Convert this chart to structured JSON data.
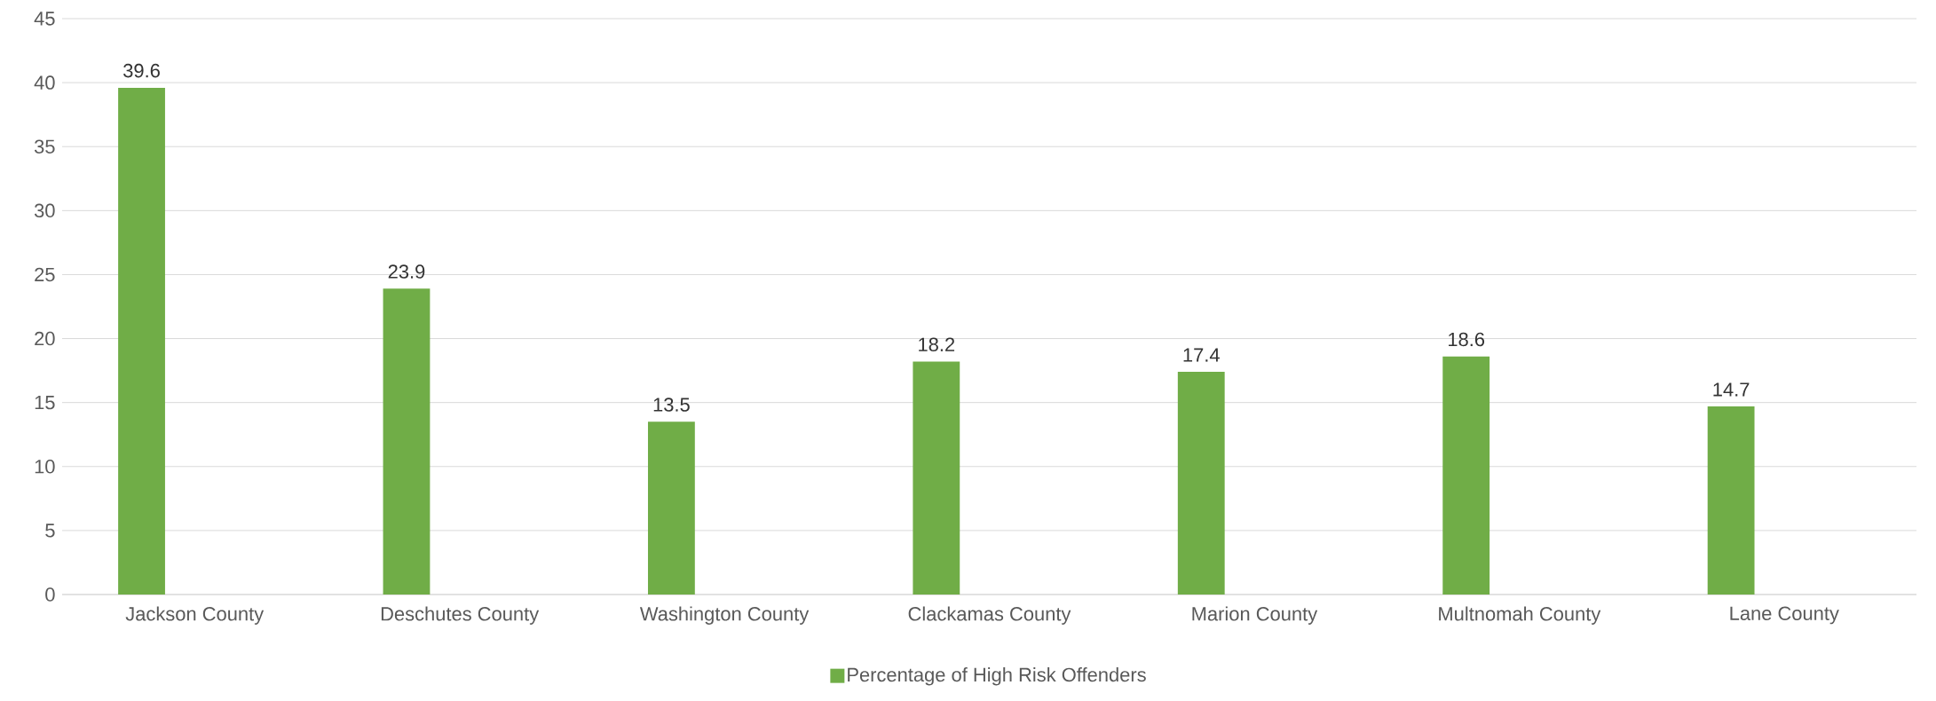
{
  "chart_data": {
    "type": "bar",
    "categories": [
      "Jackson County",
      "Deschutes County",
      "Washington County",
      "Clackamas County",
      "Marion County",
      "Multnomah County",
      "Lane County"
    ],
    "series": [
      {
        "name": "Percentage of High Risk Offenders",
        "color": "#70ad47",
        "values": [
          39.6,
          23.9,
          13.5,
          18.2,
          17.4,
          18.6,
          14.7
        ]
      }
    ],
    "ylim": [
      0,
      45
    ],
    "yticks": [
      0,
      5,
      10,
      15,
      20,
      25,
      30,
      35,
      40,
      45
    ],
    "grid": "y",
    "legend": "bottom",
    "data_labels": true
  }
}
